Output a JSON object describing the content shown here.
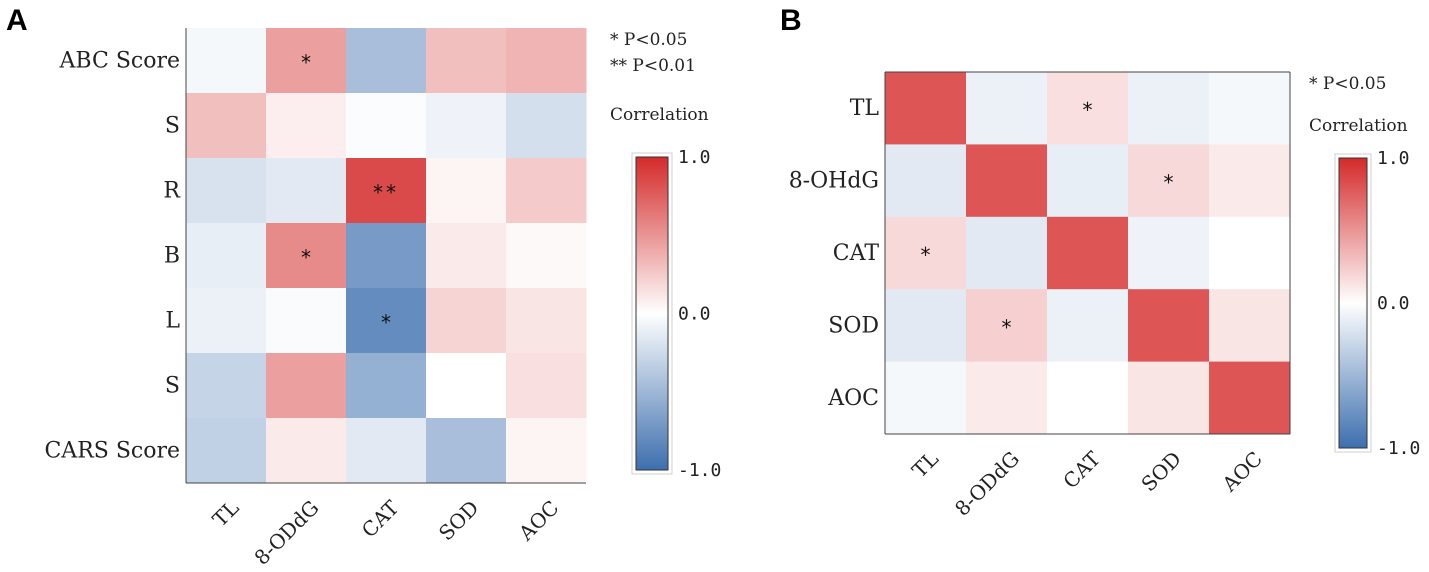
{
  "chart_data": [
    {
      "panel": "A",
      "type": "heatmap",
      "rows": [
        "ABC Score",
        "S",
        "R",
        "B",
        "L",
        "S",
        "CARS Score"
      ],
      "columns": [
        "TL",
        "8-ODdG",
        "CAT",
        "SOD",
        "AOC"
      ],
      "values": [
        [
          -0.05,
          0.45,
          -0.45,
          0.3,
          0.35
        ],
        [
          0.3,
          0.08,
          -0.02,
          -0.08,
          -0.22
        ],
        [
          -0.2,
          -0.15,
          0.85,
          0.05,
          0.25
        ],
        [
          -0.12,
          0.55,
          -0.7,
          0.1,
          0.03
        ],
        [
          -0.1,
          -0.03,
          -0.8,
          0.2,
          0.12
        ],
        [
          -0.3,
          0.45,
          -0.55,
          0.0,
          0.15
        ],
        [
          -0.32,
          0.1,
          -0.15,
          -0.45,
          0.05
        ]
      ],
      "significance": [
        [
          "",
          "*",
          "",
          "",
          ""
        ],
        [
          "",
          "",
          "",
          "",
          ""
        ],
        [
          "",
          "",
          "**",
          "",
          ""
        ],
        [
          "",
          "*",
          "",
          "",
          ""
        ],
        [
          "",
          "",
          "*",
          "",
          ""
        ],
        [
          "",
          "",
          "",
          "",
          ""
        ],
        [
          "",
          "",
          "",
          "",
          ""
        ]
      ],
      "legend": {
        "notes": [
          "*  P<0.05",
          "** P<0.01"
        ],
        "title": "Correlation",
        "ticks": [
          "1.0",
          "0.0",
          "-1.0"
        ],
        "range": [
          -1,
          1
        ]
      },
      "colors": {
        "positive": "#d42a2a",
        "neutral": "#ffffff",
        "negative": "#3d6fae"
      }
    },
    {
      "panel": "B",
      "type": "heatmap",
      "rows": [
        "TL",
        "8-OHdG",
        "CAT",
        "SOD",
        "AOC"
      ],
      "columns": [
        "TL",
        "8-ODdG",
        "CAT",
        "SOD",
        "AOC"
      ],
      "values": [
        [
          0.8,
          -0.1,
          0.15,
          -0.1,
          -0.05
        ],
        [
          -0.15,
          0.8,
          -0.12,
          0.18,
          0.1
        ],
        [
          0.18,
          -0.15,
          0.8,
          -0.08,
          0.0
        ],
        [
          -0.15,
          0.22,
          -0.1,
          0.8,
          0.12
        ],
        [
          -0.05,
          0.1,
          0.0,
          0.12,
          0.8
        ]
      ],
      "significance": [
        [
          "",
          "",
          "*",
          "",
          ""
        ],
        [
          "",
          "",
          "",
          "*",
          ""
        ],
        [
          "*",
          "",
          "",
          "",
          ""
        ],
        [
          "",
          "*",
          "",
          "",
          ""
        ],
        [
          "",
          "",
          "",
          "",
          ""
        ]
      ],
      "legend": {
        "notes": [
          "* P<0.05"
        ],
        "title": "Correlation",
        "ticks": [
          "1.0",
          "0.0",
          "-1.0"
        ],
        "range": [
          -1,
          1
        ]
      },
      "colors": {
        "positive": "#d42a2a",
        "neutral": "#ffffff",
        "negative": "#3d6fae"
      }
    }
  ]
}
